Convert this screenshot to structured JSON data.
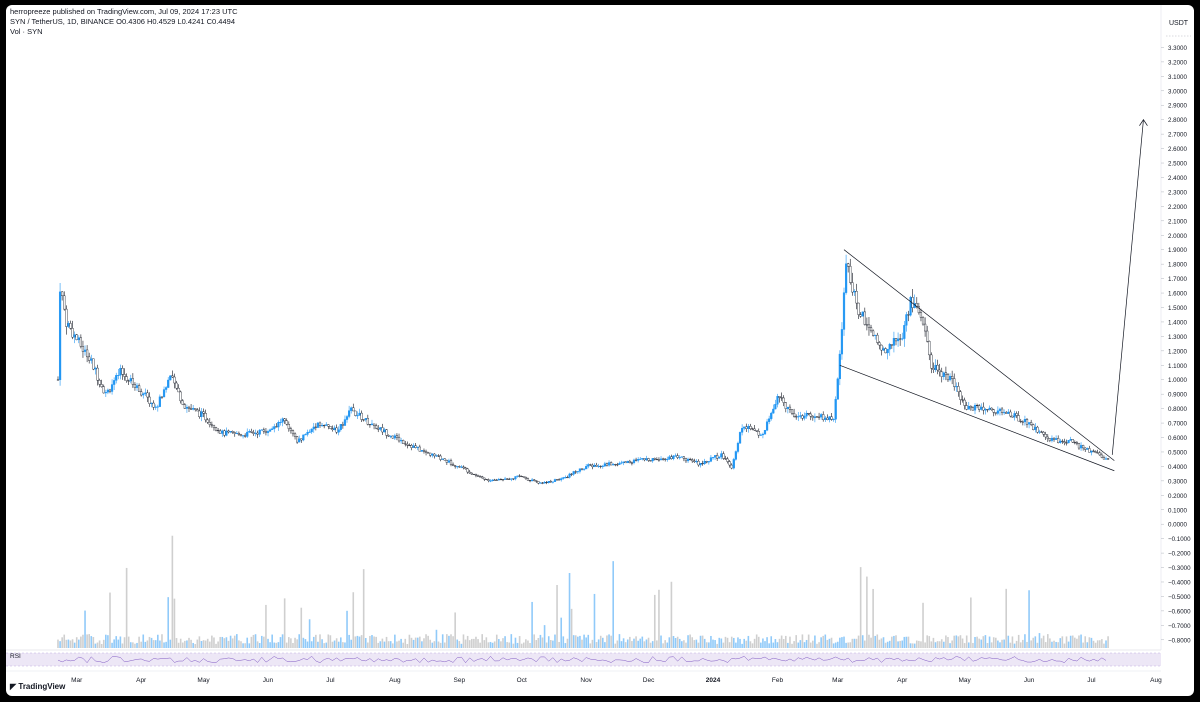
{
  "header": {
    "line1": "herropreeze published on TradingView.com, Jul 09, 2024 17:23 UTC",
    "line2": "SYN / TetherUS, 1D, BINANCE  O0.4306  H0.4529  L0.4241  C0.4494",
    "line3": "Vol · SYN"
  },
  "price_axis": {
    "unit": "USDT",
    "ticks": [
      "3.3000",
      "3.2000",
      "3.1000",
      "3.0000",
      "2.9000",
      "2.8000",
      "2.7000",
      "2.6000",
      "2.5000",
      "2.4000",
      "2.3000",
      "2.2000",
      "2.1000",
      "2.0000",
      "1.9000",
      "1.8000",
      "1.7000",
      "1.6000",
      "1.5000",
      "1.4000",
      "1.3000",
      "1.2000",
      "1.1000",
      "1.0000",
      "0.9000",
      "0.8000",
      "0.7000",
      "0.6000",
      "0.5000",
      "0.4000",
      "0.3000",
      "0.2000",
      "0.1000",
      "0.0000",
      "−0.1000",
      "−0.2000",
      "−0.3000",
      "−0.4000",
      "−0.5000",
      "−0.6000",
      "−0.7000",
      "−0.8000"
    ]
  },
  "time_axis": {
    "labels": [
      "Mar",
      "Apr",
      "May",
      "Jun",
      "Jul",
      "Aug",
      "Sep",
      "Oct",
      "Nov",
      "Dec",
      "2024",
      "Feb",
      "Mar",
      "Apr",
      "May",
      "Jun",
      "Jul",
      "Aug"
    ]
  },
  "rsi": {
    "label": "RSI"
  },
  "footer": {
    "brand": "TradingView"
  },
  "colors": {
    "up": "#2196f3",
    "down": "#131722",
    "vol_up": "#90caf9",
    "vol_down": "#cfcfcf",
    "rsi_line": "#7e57c2",
    "rsi_band": "#ede7f6"
  },
  "chart_data": {
    "type": "candlestick",
    "symbol": "SYN / TetherUS",
    "interval": "1D",
    "exchange": "BINANCE",
    "last_bar": {
      "open": 0.4306,
      "high": 0.4529,
      "low": 0.4241,
      "close": 0.4494
    },
    "ylim": [
      -0.85,
      3.4
    ],
    "price_path": [
      {
        "date": "2023-02-20",
        "price": 1.0
      },
      {
        "date": "2023-02-21",
        "price": 1.65
      },
      {
        "date": "2023-02-24",
        "price": 1.4
      },
      {
        "date": "2023-03-01",
        "price": 1.28
      },
      {
        "date": "2023-03-08",
        "price": 1.12
      },
      {
        "date": "2023-03-15",
        "price": 0.9
      },
      {
        "date": "2023-03-22",
        "price": 1.05
      },
      {
        "date": "2023-04-01",
        "price": 0.92
      },
      {
        "date": "2023-04-08",
        "price": 0.8
      },
      {
        "date": "2023-04-15",
        "price": 1.02
      },
      {
        "date": "2023-04-22",
        "price": 0.82
      },
      {
        "date": "2023-05-01",
        "price": 0.75
      },
      {
        "date": "2023-05-10",
        "price": 0.63
      },
      {
        "date": "2023-05-20",
        "price": 0.62
      },
      {
        "date": "2023-06-01",
        "price": 0.65
      },
      {
        "date": "2023-06-08",
        "price": 0.72
      },
      {
        "date": "2023-06-15",
        "price": 0.57
      },
      {
        "date": "2023-06-25",
        "price": 0.7
      },
      {
        "date": "2023-07-05",
        "price": 0.64
      },
      {
        "date": "2023-07-10",
        "price": 0.8
      },
      {
        "date": "2023-07-20",
        "price": 0.7
      },
      {
        "date": "2023-08-01",
        "price": 0.6
      },
      {
        "date": "2023-08-15",
        "price": 0.5
      },
      {
        "date": "2023-09-01",
        "price": 0.4
      },
      {
        "date": "2023-09-15",
        "price": 0.3
      },
      {
        "date": "2023-10-01",
        "price": 0.33
      },
      {
        "date": "2023-10-10",
        "price": 0.28
      },
      {
        "date": "2023-10-20",
        "price": 0.31
      },
      {
        "date": "2023-11-01",
        "price": 0.4
      },
      {
        "date": "2023-11-15",
        "price": 0.42
      },
      {
        "date": "2023-12-01",
        "price": 0.45
      },
      {
        "date": "2023-12-15",
        "price": 0.47
      },
      {
        "date": "2023-12-25",
        "price": 0.42
      },
      {
        "date": "2024-01-05",
        "price": 0.48
      },
      {
        "date": "2024-01-10",
        "price": 0.4
      },
      {
        "date": "2024-01-15",
        "price": 0.68
      },
      {
        "date": "2024-01-25",
        "price": 0.62
      },
      {
        "date": "2024-02-01",
        "price": 0.88
      },
      {
        "date": "2024-02-10",
        "price": 0.75
      },
      {
        "date": "2024-02-20",
        "price": 0.75
      },
      {
        "date": "2024-02-28",
        "price": 0.72
      },
      {
        "date": "2024-03-02",
        "price": 1.15
      },
      {
        "date": "2024-03-05",
        "price": 1.85
      },
      {
        "date": "2024-03-10",
        "price": 1.5
      },
      {
        "date": "2024-03-15",
        "price": 1.4
      },
      {
        "date": "2024-03-22",
        "price": 1.2
      },
      {
        "date": "2024-04-01",
        "price": 1.3
      },
      {
        "date": "2024-04-05",
        "price": 1.55
      },
      {
        "date": "2024-04-10",
        "price": 1.45
      },
      {
        "date": "2024-04-15",
        "price": 1.1
      },
      {
        "date": "2024-04-25",
        "price": 1.0
      },
      {
        "date": "2024-05-01",
        "price": 0.82
      },
      {
        "date": "2024-05-10",
        "price": 0.8
      },
      {
        "date": "2024-05-20",
        "price": 0.78
      },
      {
        "date": "2024-06-01",
        "price": 0.7
      },
      {
        "date": "2024-06-10",
        "price": 0.58
      },
      {
        "date": "2024-06-20",
        "price": 0.58
      },
      {
        "date": "2024-06-28",
        "price": 0.52
      },
      {
        "date": "2024-07-09",
        "price": 0.4494
      }
    ],
    "wedge_upper": [
      {
        "date": "2024-03-04",
        "price": 1.9
      },
      {
        "date": "2024-07-12",
        "price": 0.44
      }
    ],
    "wedge_lower": [
      {
        "date": "2024-03-02",
        "price": 1.1
      },
      {
        "date": "2024-07-12",
        "price": 0.37
      }
    ],
    "target_arrow": [
      {
        "date": "2024-07-11",
        "price": 0.48
      },
      {
        "date": "2024-07-26",
        "price": 2.8
      }
    ]
  }
}
